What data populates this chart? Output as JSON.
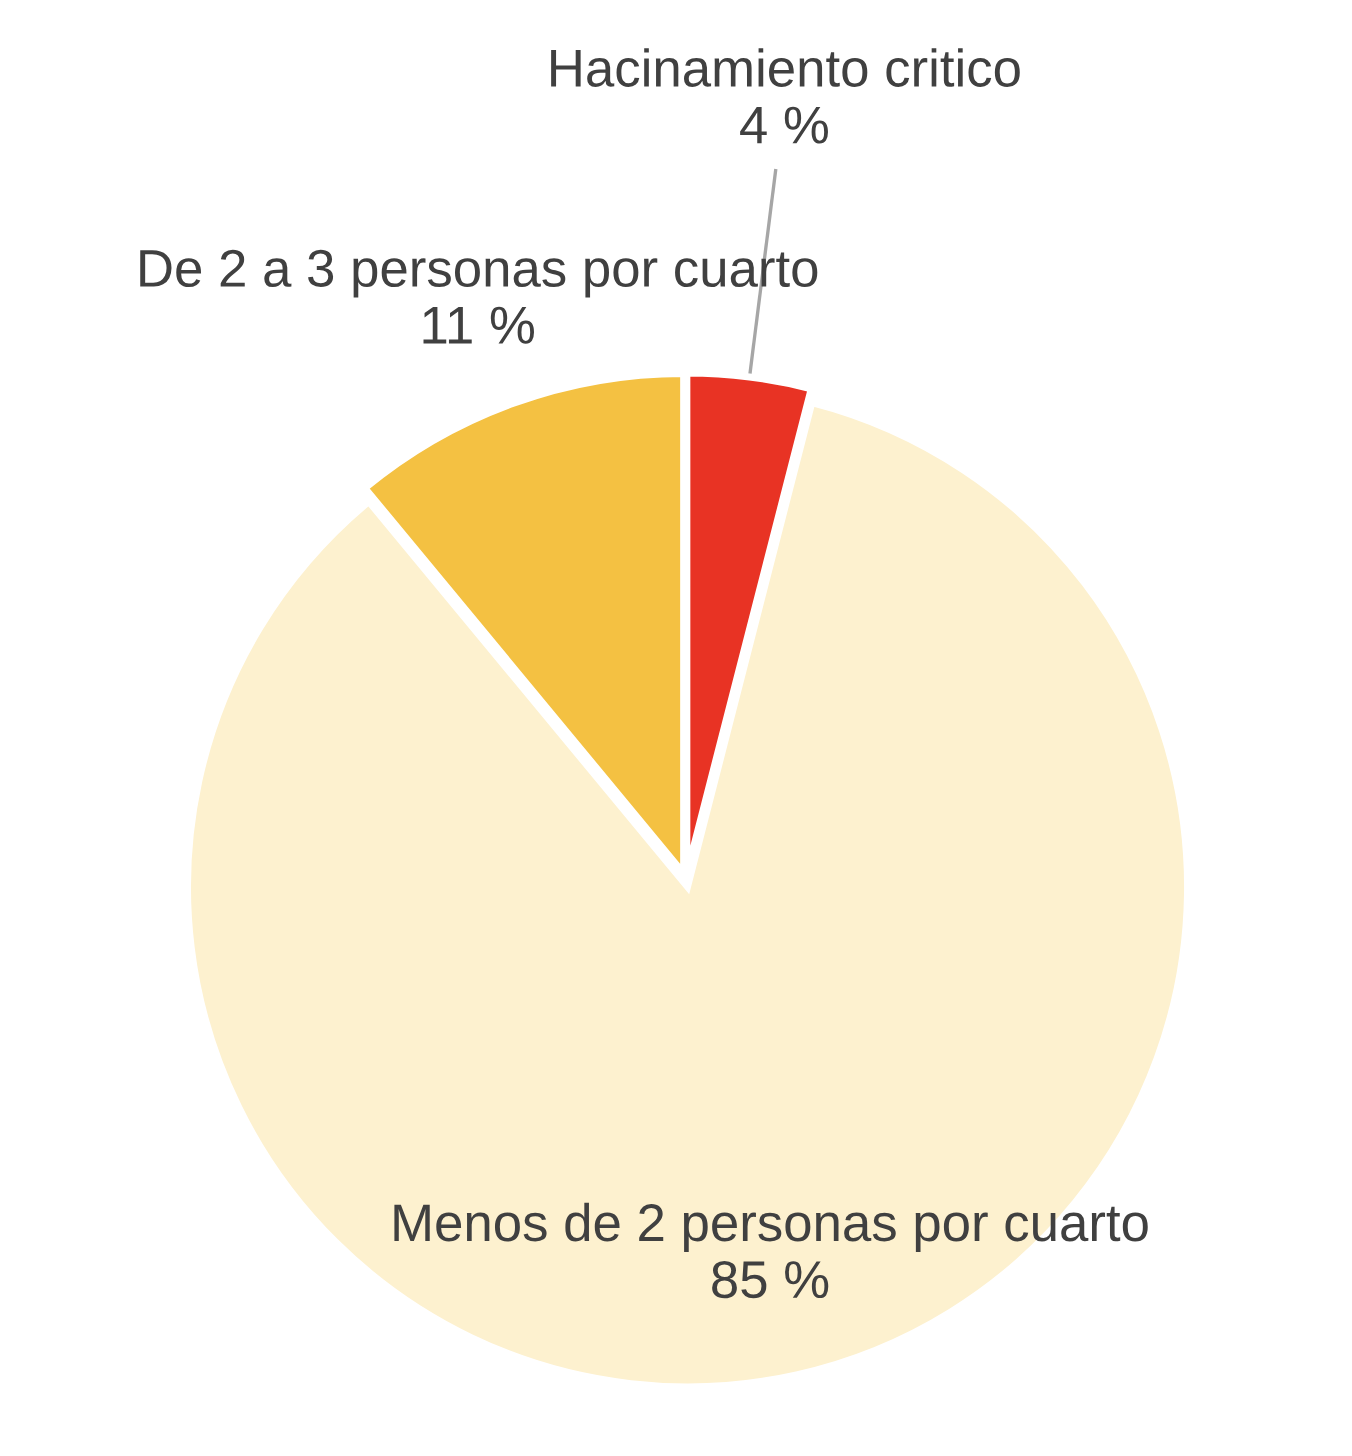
{
  "chart_data": {
    "type": "pie",
    "categories": [
      "Hacinamiento critico",
      "Menos de 2 personas por cuarto",
      "De 2 a 3 personas por cuarto"
    ],
    "values": [
      4,
      85,
      11
    ],
    "colors": [
      "#e83324",
      "#fdf1cf",
      "#f4c142"
    ],
    "value_labels": [
      "4 %",
      "85 %",
      "11 %"
    ],
    "legend": false
  }
}
